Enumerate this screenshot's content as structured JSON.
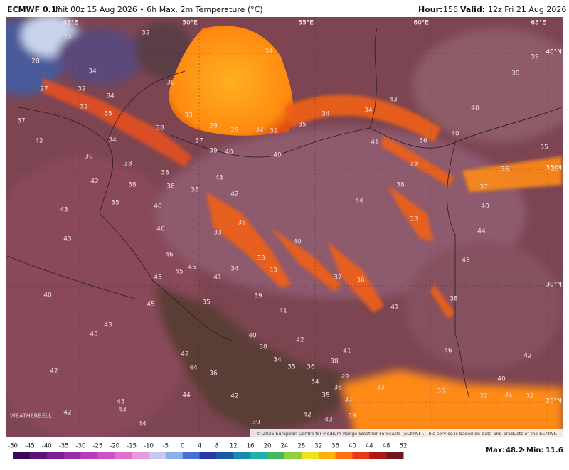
{
  "header": {
    "model": "ECMWF 0.1°",
    "description": "Init 00z 15 Aug 2026 • 6h Max. 2m Temperature (°C)",
    "hour_label": "Hour:",
    "hour": "156",
    "valid_label": "Valid:",
    "valid": "12z Fri 21 Aug 2026"
  },
  "map": {
    "longitudes": [
      "45°E",
      "50°E",
      "55°E",
      "60°E",
      "65°E"
    ],
    "latitudes": [
      "40°N",
      "35°N",
      "30°N",
      "25°N"
    ],
    "temperature_labels": [
      32,
      33,
      28,
      34,
      34,
      39,
      39,
      30,
      32,
      27,
      34,
      32,
      43,
      35,
      40,
      34,
      34,
      33,
      37,
      35,
      38,
      29,
      29,
      32,
      31,
      40,
      42,
      34,
      37,
      41,
      36,
      35,
      40,
      39,
      40,
      39,
      38,
      35,
      36,
      35,
      38,
      43,
      42,
      38,
      38,
      38,
      37,
      38,
      42,
      44,
      35,
      40,
      40,
      43,
      38,
      33,
      46,
      33,
      44,
      43,
      40,
      46,
      33,
      45,
      45,
      45,
      34,
      33,
      41,
      45,
      37,
      36,
      40,
      39,
      38,
      35,
      45,
      41,
      41,
      43,
      40,
      42,
      43,
      38,
      41,
      46,
      42,
      42,
      34,
      38,
      35,
      36,
      44,
      42,
      36,
      36,
      40,
      34,
      33,
      36,
      36,
      44,
      35,
      42,
      32,
      32,
      31,
      37,
      43,
      43,
      42,
      42,
      39,
      44,
      39,
      43
    ],
    "copyright": "© 2026 European Centre for Medium-Range Weather Forecasts (ECMWF). This service is based on data and products of the ECMWF.",
    "logo": "WEATHERBELL"
  },
  "colorbar": {
    "ticks": [
      -50,
      -45,
      -40,
      -35,
      -30,
      -25,
      -20,
      -15,
      -10,
      -5,
      0,
      4,
      8,
      12,
      16,
      20,
      24,
      28,
      32,
      36,
      40,
      44,
      48,
      52
    ]
  },
  "stats": {
    "max_label": "Max:",
    "max": "48.2",
    "min_label": "Min:",
    "min": "11.6"
  }
}
